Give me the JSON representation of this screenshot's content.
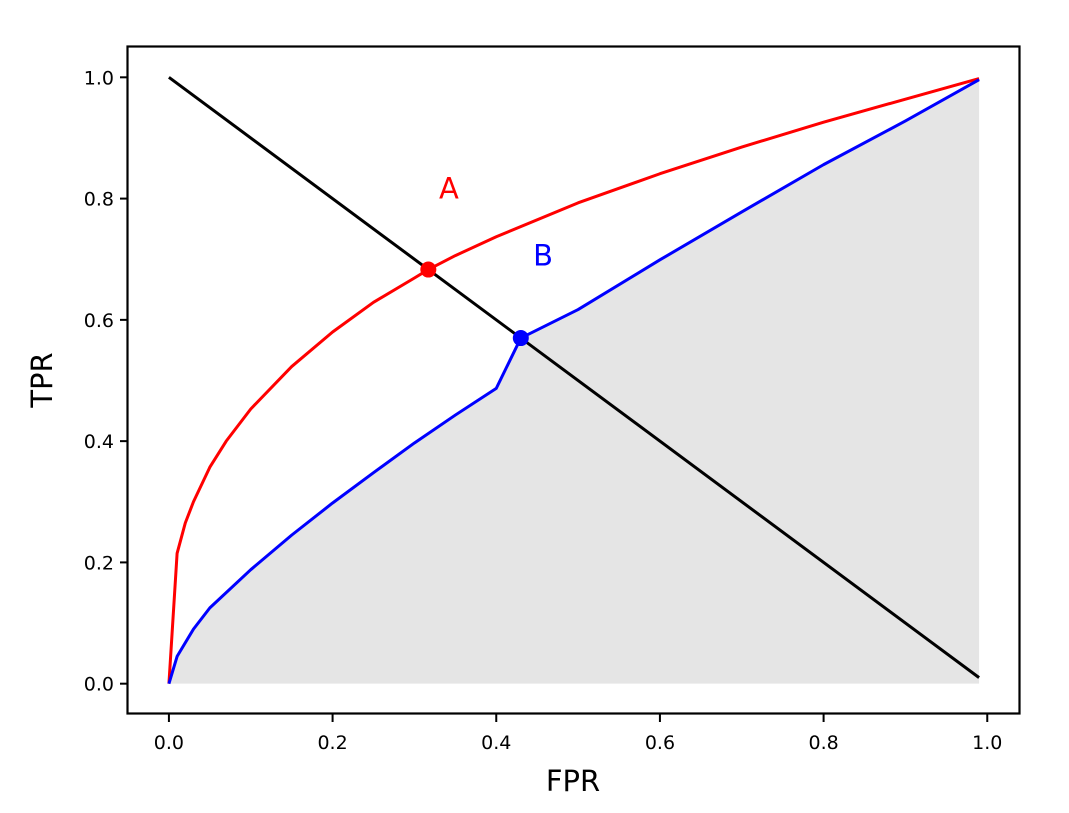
{
  "chart_data": {
    "type": "line",
    "title": "",
    "xlabel": "FPR",
    "ylabel": "TPR",
    "xlim": [
      -0.05,
      1.04
    ],
    "ylim": [
      -0.05,
      1.05
    ],
    "xticks": [
      0.0,
      0.2,
      0.4,
      0.6,
      0.8,
      1.0
    ],
    "xtick_labels": [
      "0.0",
      "0.2",
      "0.4",
      "0.6",
      "0.8",
      "1.0"
    ],
    "yticks": [
      0.0,
      0.2,
      0.4,
      0.6,
      0.8,
      1.0
    ],
    "ytick_labels": [
      "0.0",
      "0.2",
      "0.4",
      "0.6",
      "0.8",
      "1.0"
    ],
    "grid": false,
    "legend": "none",
    "series": [
      {
        "color": "#ff0000",
        "x": [
          0.0,
          0.01,
          0.02,
          0.03,
          0.05,
          0.07,
          0.1,
          0.15,
          0.2,
          0.25,
          0.3,
          0.317,
          0.35,
          0.4,
          0.5,
          0.6,
          0.7,
          0.8,
          0.9,
          0.99
        ],
        "y": [
          0.0,
          0.215,
          0.265,
          0.3,
          0.357,
          0.4,
          0.453,
          0.523,
          0.58,
          0.629,
          0.669,
          0.683,
          0.706,
          0.737,
          0.793,
          0.841,
          0.885,
          0.926,
          0.964,
          0.998
        ]
      },
      {
        "color": "#0000ff",
        "x": [
          0.0,
          0.01,
          0.03,
          0.05,
          0.1,
          0.15,
          0.2,
          0.25,
          0.3,
          0.35,
          0.4,
          0.43,
          0.5,
          0.6,
          0.7,
          0.8,
          0.9,
          0.99
        ],
        "y": [
          0.0,
          0.045,
          0.09,
          0.125,
          0.188,
          0.245,
          0.298,
          0.348,
          0.397,
          0.443,
          0.487,
          0.57,
          0.617,
          0.699,
          0.778,
          0.856,
          0.928,
          0.996
        ]
      }
    ],
    "diagonal_line": {
      "color": "#000000",
      "x": [
        0.0,
        0.99
      ],
      "y": [
        1.0,
        0.01
      ]
    },
    "shaded_region": {
      "color": "#e5e5e5",
      "under_series_index": 1
    },
    "points": [
      {
        "label": "A",
        "x": 0.317,
        "y": 0.683,
        "color": "#ff0000"
      },
      {
        "label": "B",
        "x": 0.43,
        "y": 0.57,
        "color": "#0000ff"
      }
    ],
    "annotations": [
      {
        "text": "A",
        "x": 0.33,
        "y": 0.8,
        "color": "#ff0000"
      },
      {
        "text": "B",
        "x": 0.445,
        "y": 0.69,
        "color": "#0000ff"
      }
    ]
  }
}
